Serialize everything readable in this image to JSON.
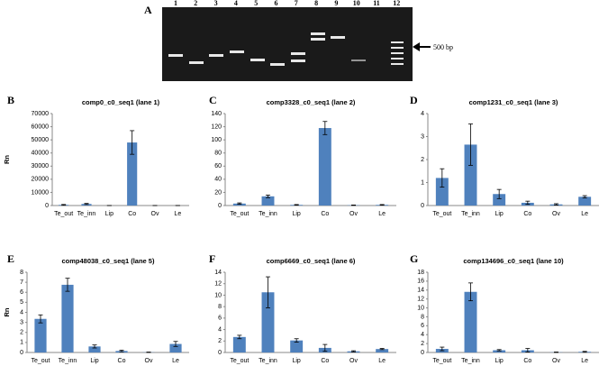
{
  "gel": {
    "panel_label": "A",
    "lanes": [
      "1",
      "2",
      "3",
      "4",
      "5",
      "6",
      "7",
      "8",
      "9",
      "10",
      "11",
      "12"
    ],
    "marker_label": "500 bp"
  },
  "chart_data": [
    {
      "type": "bar",
      "panel_label": "B",
      "title": "comp0_c0_seq1 (lane 1)",
      "y_label": "Rn",
      "color": "#4f81bd",
      "categories": [
        "Te_out",
        "Te_inn",
        "Lip",
        "Co",
        "Ov",
        "Le"
      ],
      "values": [
        500,
        1200,
        0,
        48000,
        0,
        0
      ],
      "errors": [
        300,
        400,
        0,
        9000,
        0,
        0
      ],
      "ylim": [
        0,
        70000
      ],
      "yticks": [
        0,
        10000,
        20000,
        30000,
        40000,
        50000,
        60000,
        70000
      ]
    },
    {
      "type": "bar",
      "panel_label": "C",
      "title": "comp3328_c0_seq1 (lane 2)",
      "color": "#4f81bd",
      "categories": [
        "Te_out",
        "Te_inn",
        "Lip",
        "Co",
        "Ov",
        "Le"
      ],
      "values": [
        3,
        14,
        1,
        118,
        0.5,
        1
      ],
      "errors": [
        1,
        2,
        0.5,
        10,
        0.3,
        0.5
      ],
      "ylim": [
        0,
        140
      ],
      "yticks": [
        0,
        20,
        40,
        60,
        80,
        100,
        120,
        140
      ]
    },
    {
      "type": "bar",
      "panel_label": "D",
      "title": "comp1231_c0_seq1 (lane 3)",
      "color": "#4f81bd",
      "categories": [
        "Te_out",
        "Te_inn",
        "Lip",
        "Co",
        "Ov",
        "Le"
      ],
      "values": [
        1.2,
        2.65,
        0.5,
        0.12,
        0.05,
        0.38
      ],
      "errors": [
        0.4,
        0.9,
        0.2,
        0.07,
        0.03,
        0.05
      ],
      "ylim": [
        0,
        4
      ],
      "yticks": [
        0,
        1,
        2,
        3,
        4
      ]
    },
    {
      "type": "bar",
      "panel_label": "E",
      "title": "comp48038_c0_seq1 (lane 5)",
      "y_label": "Rn",
      "color": "#4f81bd",
      "categories": [
        "Te_out",
        "Te_inn",
        "Lip",
        "Co",
        "Ov",
        "Le"
      ],
      "values": [
        3.35,
        6.75,
        0.6,
        0.15,
        0.02,
        0.85
      ],
      "errors": [
        0.4,
        0.65,
        0.15,
        0.08,
        0.02,
        0.25
      ],
      "ylim": [
        0,
        8
      ],
      "yticks": [
        0,
        1,
        2,
        3,
        4,
        5,
        6,
        7,
        8
      ]
    },
    {
      "type": "bar",
      "panel_label": "F",
      "title": "comp6669_c0_seq1 (lane 6)",
      "color": "#4f81bd",
      "categories": [
        "Te_out",
        "Te_inn",
        "Lip",
        "Co",
        "Ov",
        "Le"
      ],
      "values": [
        2.7,
        10.5,
        2.1,
        0.8,
        0.2,
        0.6
      ],
      "errors": [
        0.3,
        2.7,
        0.3,
        0.6,
        0.1,
        0.1
      ],
      "ylim": [
        0,
        14
      ],
      "yticks": [
        0,
        2,
        4,
        6,
        8,
        10,
        12,
        14
      ]
    },
    {
      "type": "bar",
      "panel_label": "G",
      "title": "comp134696_c0_seq1 (lane 10)",
      "color": "#4f81bd",
      "categories": [
        "Te_out",
        "Te_inn",
        "Lip",
        "Co",
        "Ov",
        "Le"
      ],
      "values": [
        0.8,
        13.6,
        0.5,
        0.5,
        0.05,
        0.15
      ],
      "errors": [
        0.4,
        2.0,
        0.15,
        0.4,
        0.05,
        0.1
      ],
      "ylim": [
        0,
        18
      ],
      "yticks": [
        0,
        2,
        4,
        6,
        8,
        10,
        12,
        14,
        16,
        18
      ]
    }
  ]
}
